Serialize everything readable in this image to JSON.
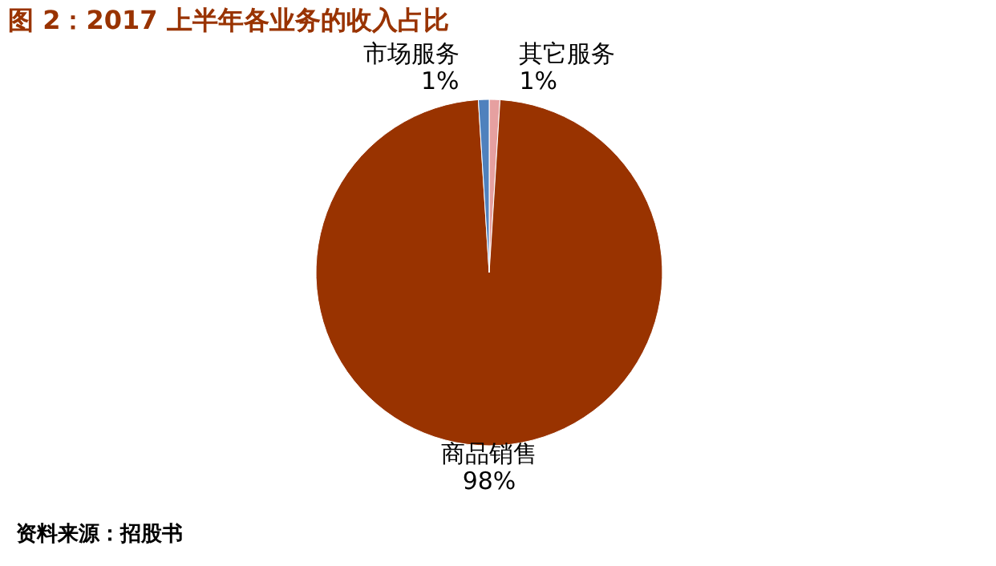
{
  "chart_data": {
    "type": "pie",
    "title": "图 2：2017 上半年各业务的收入占比",
    "categories": [
      "其它服务",
      "商品销售",
      "市场服务"
    ],
    "values": [
      1,
      98,
      1
    ],
    "colors": [
      "#e6a0a0",
      "#993300",
      "#4f81bd"
    ],
    "value_labels": [
      "1%",
      "98%",
      "1%"
    ],
    "legend": false,
    "annotations": [
      "资料来源：招股书"
    ]
  }
}
